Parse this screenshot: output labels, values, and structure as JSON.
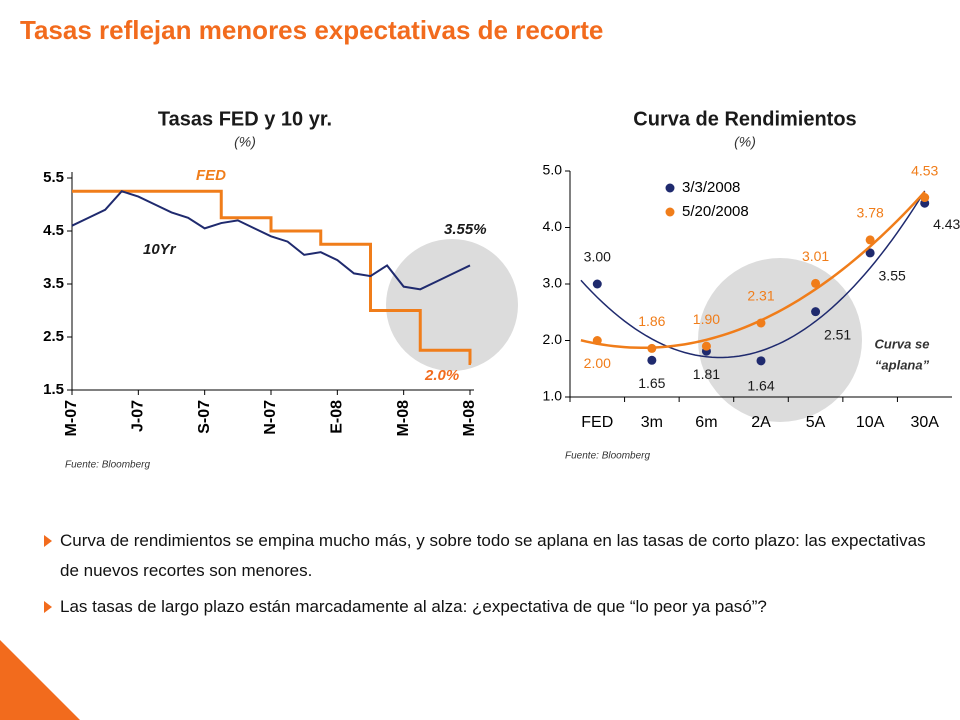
{
  "title": "Tasas reflejan menores expectativas de recorte",
  "chart_data": [
    {
      "type": "line",
      "title": "Tasas FED y 10 yr.",
      "subtitle": "(%)",
      "categories": [
        "M-07",
        null,
        null,
        null,
        "J-07",
        null,
        null,
        null,
        "S-07",
        null,
        null,
        null,
        "N-07",
        null,
        null,
        null,
        "E-08",
        null,
        null,
        null,
        "M-08",
        null,
        null,
        null,
        "M-08"
      ],
      "series": [
        {
          "name": "FED",
          "color": "#f07d1a",
          "line_style": "step",
          "values": [
            5.25,
            5.25,
            5.25,
            5.25,
            5.25,
            5.25,
            5.25,
            5.25,
            5.25,
            4.75,
            4.75,
            4.75,
            4.5,
            4.5,
            4.5,
            4.25,
            4.25,
            4.25,
            3.0,
            3.0,
            3.0,
            2.25,
            2.25,
            2.25,
            2.0
          ]
        },
        {
          "name": "10Yr",
          "color": "#1f2a6e",
          "line_style": "solid",
          "values": [
            4.6,
            4.75,
            4.9,
            5.25,
            5.15,
            5.0,
            4.85,
            4.75,
            4.55,
            4.65,
            4.7,
            4.55,
            4.4,
            4.3,
            4.05,
            4.1,
            3.95,
            3.7,
            3.65,
            3.85,
            3.45,
            3.4,
            3.55,
            3.7,
            3.85
          ]
        }
      ],
      "ylim": [
        1.5,
        5.5
      ],
      "yticks": [
        1.5,
        2.5,
        3.5,
        4.5,
        5.5
      ],
      "annotations": [
        "3.55%",
        "2.0%"
      ],
      "source": "Fuente: Bloomberg"
    },
    {
      "type": "scatter",
      "title": "Curva de Rendimientos",
      "subtitle": "(%)",
      "categories": [
        "FED",
        "3m",
        "6m",
        "2A",
        "5A",
        "10A",
        "30A"
      ],
      "series": [
        {
          "name": "3/3/2008",
          "color": "#1f2a6e",
          "values": [
            3.0,
            1.65,
            1.81,
            1.64,
            2.51,
            3.55,
            4.43
          ],
          "value_labels": [
            "3.00",
            "1.65",
            "1.81",
            "1.64",
            "2.51",
            "3.55",
            "4.43"
          ]
        },
        {
          "name": "5/20/2008",
          "color": "#f07d1a",
          "values": [
            2.0,
            1.86,
            1.9,
            2.31,
            3.01,
            3.78,
            4.53
          ],
          "value_labels": [
            "2.00",
            "1.86",
            "1.90",
            "2.31",
            "3.01",
            "3.78",
            "4.53"
          ]
        }
      ],
      "trendline": "polynomial",
      "ylim": [
        1.0,
        5.0
      ],
      "yticks": [
        {
          "value": 1.0,
          "label": "1.0"
        },
        {
          "value": 2.0,
          "label": "2.0"
        },
        {
          "value": 3.0,
          "label": "3.0"
        },
        {
          "value": 4.0,
          "label": "4.0"
        },
        {
          "value": 5.0,
          "label": "5.0"
        }
      ],
      "annotations": [
        "Curva se",
        "“aplana”"
      ],
      "source": "Fuente: Bloomberg"
    }
  ],
  "bullets": [
    "Curva de rendimientos se empina mucho más, y sobre todo se aplana en las tasas de corto plazo: las expectativas de nuevos recortes son menores.",
    "Las tasas de largo plazo están marcadamente al alza: ¿expectativa de que “lo peor ya pasó”?"
  ]
}
